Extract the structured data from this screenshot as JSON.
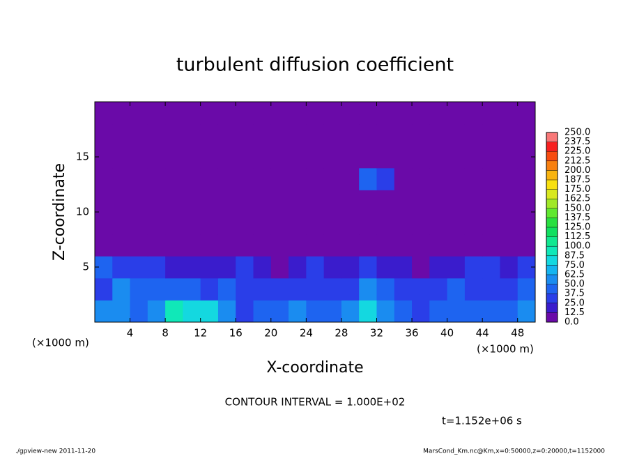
{
  "chart_data": {
    "type": "heatmap",
    "title": "turbulent diffusion coefficient",
    "xlabel": "X-coordinate",
    "ylabel": "Z-coordinate",
    "x_unit": "(×1000 m)",
    "annotations": [
      "CONTOUR INTERVAL = 1.000E+02",
      "t=1.152e+06 s"
    ],
    "footer_left": "./gpview-new  2011-11-20",
    "footer_right": "MarsCond_Km.nc@Km,x=0:50000,z=0:20000,t=1152000",
    "xlim": [
      0,
      50
    ],
    "ylim": [
      0,
      20
    ],
    "xticks": [
      4,
      8,
      12,
      16,
      20,
      24,
      28,
      32,
      36,
      40,
      44,
      48
    ],
    "yticks": [
      5,
      10,
      15
    ],
    "xbins": [
      0,
      2,
      4,
      6,
      8,
      10,
      12,
      14,
      16,
      18,
      20,
      22,
      24,
      26,
      28,
      30,
      32,
      34,
      36,
      38,
      40,
      42,
      44,
      46,
      48,
      50
    ],
    "ybins": [
      0,
      2,
      4,
      6,
      8,
      10,
      12,
      14,
      16,
      18,
      20
    ],
    "values": [
      [
        50,
        60,
        40,
        50,
        90,
        80,
        80,
        50,
        30,
        40,
        45,
        50,
        40,
        45,
        60,
        80,
        50,
        40,
        35,
        40,
        45,
        40,
        40,
        45,
        50
      ],
      [
        30,
        55,
        40,
        45,
        45,
        40,
        30,
        40,
        30,
        25,
        30,
        30,
        25,
        30,
        35,
        50,
        40,
        30,
        25,
        30,
        40,
        30,
        35,
        30,
        40
      ],
      [
        45,
        30,
        30,
        35,
        20,
        15,
        15,
        20,
        25,
        15,
        10,
        15,
        25,
        20,
        15,
        30,
        20,
        15,
        10,
        15,
        20,
        30,
        25,
        20,
        30
      ],
      [
        5,
        0,
        0,
        0,
        0,
        0,
        0,
        0,
        0,
        0,
        0,
        0,
        5,
        10,
        5,
        0,
        0,
        0,
        0,
        0,
        0,
        0,
        0,
        0,
        5
      ],
      [
        0,
        0,
        0,
        0,
        0,
        0,
        0,
        0,
        0,
        0,
        0,
        0,
        0,
        0,
        0,
        0,
        0,
        0,
        0,
        0,
        0,
        0,
        0,
        0,
        0
      ],
      [
        0,
        0,
        0,
        0,
        0,
        0,
        0,
        0,
        0,
        0,
        0,
        0,
        0,
        0,
        0,
        0,
        0,
        0,
        0,
        0,
        0,
        0,
        0,
        0,
        0
      ],
      [
        0,
        0,
        0,
        0,
        0,
        0,
        0,
        0,
        0,
        0,
        0,
        0,
        0,
        0,
        0,
        40,
        30,
        0,
        0,
        0,
        0,
        0,
        0,
        0,
        0
      ],
      [
        0,
        0,
        0,
        0,
        0,
        0,
        0,
        0,
        0,
        0,
        0,
        0,
        0,
        0,
        0,
        0,
        0,
        0,
        0,
        0,
        0,
        0,
        0,
        0,
        0
      ],
      [
        0,
        0,
        0,
        0,
        0,
        0,
        0,
        0,
        0,
        0,
        0,
        0,
        0,
        0,
        0,
        0,
        0,
        0,
        0,
        0,
        0,
        0,
        0,
        0,
        0
      ],
      [
        0,
        0,
        0,
        0,
        0,
        0,
        0,
        0,
        0,
        0,
        0,
        0,
        0,
        0,
        0,
        0,
        0,
        0,
        0,
        0,
        0,
        0,
        0,
        0,
        0
      ]
    ],
    "levels": [
      {
        "value": 0,
        "label": "0.0"
      },
      {
        "value": 12.5,
        "label": "12.5"
      },
      {
        "value": 25,
        "label": "25.0"
      },
      {
        "value": 37.5,
        "label": "37.5"
      },
      {
        "value": 50,
        "label": "50.0"
      },
      {
        "value": 62.5,
        "label": "62.5"
      },
      {
        "value": 75,
        "label": "75.0"
      },
      {
        "value": 87.5,
        "label": "87.5"
      },
      {
        "value": 100,
        "label": "100.0"
      },
      {
        "value": 112.5,
        "label": "112.5"
      },
      {
        "value": 125,
        "label": "125.0"
      },
      {
        "value": 137.5,
        "label": "137.5"
      },
      {
        "value": 150,
        "label": "150.0"
      },
      {
        "value": 162.5,
        "label": "162.5"
      },
      {
        "value": 175,
        "label": "175.0"
      },
      {
        "value": 187.5,
        "label": "187.5"
      },
      {
        "value": 200,
        "label": "200.0"
      },
      {
        "value": 212.5,
        "label": "212.5"
      },
      {
        "value": 225,
        "label": "225.0"
      },
      {
        "value": 237.5,
        "label": "237.5"
      },
      {
        "value": 250,
        "label": "250.0"
      }
    ],
    "colors": [
      "#6a0aa8",
      "#3a1ccc",
      "#2a3ee8",
      "#1e64f0",
      "#1a8cf0",
      "#14b4f0",
      "#14d8e0",
      "#10e8b8",
      "#10e890",
      "#10e060",
      "#28e040",
      "#60e830",
      "#a0e828",
      "#d8e820",
      "#f8e010",
      "#f8b410",
      "#f88010",
      "#f84c10",
      "#f82020",
      "#f87878"
    ]
  }
}
